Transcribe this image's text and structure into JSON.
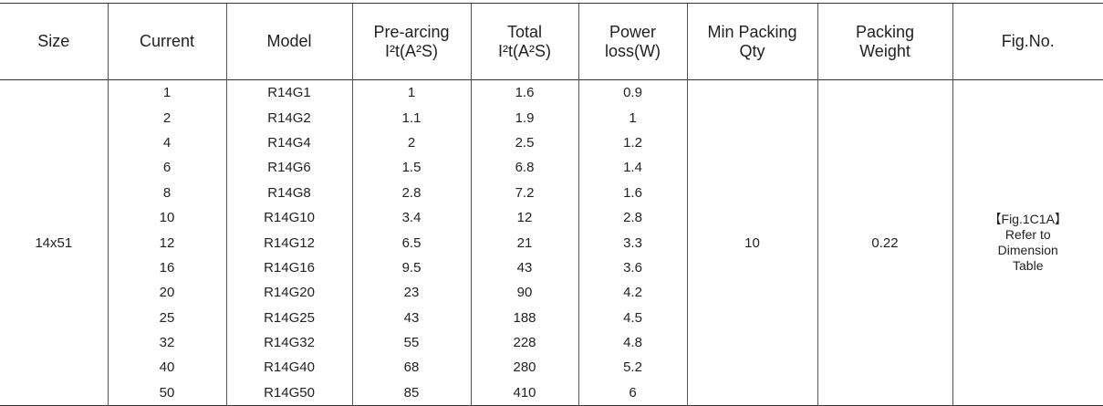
{
  "headers": {
    "size": "Size",
    "current": "Current",
    "model": "Model",
    "prearcing_l1": "Pre-arcing",
    "prearcing_l2": "I²t(A²S)",
    "total_l1": "Total",
    "total_l2": "I²t(A²S)",
    "power_l1": "Power",
    "power_l2": "loss(W)",
    "packing_qty_l1": "Min Packing",
    "packing_qty_l2": "Qty",
    "packing_weight_l1": "Packing",
    "packing_weight_l2": "Weight",
    "fig": "Fig.No."
  },
  "size": "14x51",
  "min_packing_qty": "10",
  "packing_weight": "0.22",
  "fig": {
    "line1": "【Fig.1C1A】",
    "line2": "Refer to",
    "line3": "Dimension",
    "line4": "Table"
  },
  "rows": [
    {
      "current": "1",
      "model": "R14G1",
      "prearcing": "1",
      "total": "1.6",
      "power": "0.9"
    },
    {
      "current": "2",
      "model": "R14G2",
      "prearcing": "1.1",
      "total": "1.9",
      "power": "1"
    },
    {
      "current": "4",
      "model": "R14G4",
      "prearcing": "2",
      "total": "2.5",
      "power": "1.2"
    },
    {
      "current": "6",
      "model": "R14G6",
      "prearcing": "1.5",
      "total": "6.8",
      "power": "1.4"
    },
    {
      "current": "8",
      "model": "R14G8",
      "prearcing": "2.8",
      "total": "7.2",
      "power": "1.6"
    },
    {
      "current": "10",
      "model": "R14G10",
      "prearcing": "3.4",
      "total": "12",
      "power": "2.8"
    },
    {
      "current": "12",
      "model": "R14G12",
      "prearcing": "6.5",
      "total": "21",
      "power": "3.3"
    },
    {
      "current": "16",
      "model": "R14G16",
      "prearcing": "9.5",
      "total": "43",
      "power": "3.6"
    },
    {
      "current": "20",
      "model": "R14G20",
      "prearcing": "23",
      "total": "90",
      "power": "4.2"
    },
    {
      "current": "25",
      "model": "R14G25",
      "prearcing": "43",
      "total": "188",
      "power": "4.5"
    },
    {
      "current": "32",
      "model": "R14G32",
      "prearcing": "55",
      "total": "228",
      "power": "4.8"
    },
    {
      "current": "40",
      "model": "R14G40",
      "prearcing": "68",
      "total": "280",
      "power": "5.2"
    },
    {
      "current": "50",
      "model": "R14G50",
      "prearcing": "85",
      "total": "410",
      "power": "6"
    }
  ]
}
